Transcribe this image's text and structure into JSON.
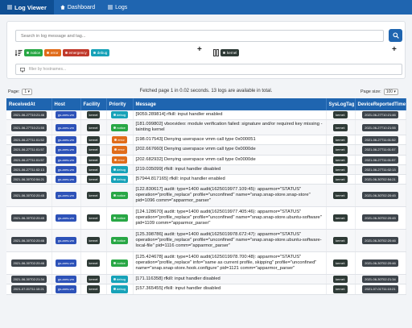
{
  "nav": {
    "brand": "Log Viewer",
    "dashboard": "Dashboard",
    "logs": "Logs"
  },
  "search": {
    "placeholder": "Search in log message and tag..."
  },
  "severity_tags": [
    {
      "label": "notice",
      "color": "#28a745"
    },
    {
      "label": "error",
      "color": "#e06c1a"
    },
    {
      "label": "emergency",
      "color": "#c0392b"
    },
    {
      "label": "debug",
      "color": "#17a2b8"
    }
  ],
  "syslog_tags": [
    {
      "label": "kernel",
      "color": "#2e3a36"
    }
  ],
  "host_filter": {
    "placeholder": "filter by hostnames..."
  },
  "pagination": {
    "page_label": "Page:",
    "page_value": "1",
    "status": "Fetched page 1 in 0.02 seconds. 13 logs are available in total.",
    "size_label": "Page size:",
    "size_value": "100"
  },
  "table": {
    "headers": [
      "ReceivedAt",
      "Host",
      "Facility",
      "Priority",
      "Message",
      "SysLogTag",
      "DeviceReportedTime"
    ],
    "rows": [
      {
        "received": "2021-06-27T10:21:46",
        "host": "gs-ares-vm",
        "facility": "kernel",
        "priority": "debug",
        "pcolor": "#17a2b8",
        "message": "[9059.289814] rfkill: input handler enabled",
        "tag": "kernel:",
        "reported": "2021-06-27T10:21:46"
      },
      {
        "received": "2021-06-27T10:21:55",
        "host": "gs-ares-vm",
        "facility": "kernel",
        "priority": "notice",
        "pcolor": "#28a745",
        "message": "[181.099802] vboxvideo: module verification failed: signature and/or required key missing - tainting kernel",
        "tag": "kernel:",
        "reported": "2021-06-27T10:21:55"
      },
      {
        "received": "2021-06-27T11:01:52",
        "host": "gs-ares-vm",
        "facility": "kernel",
        "priority": "error",
        "pcolor": "#e06c1a",
        "message": "[198.017543] Denying userspace vmm call type 0x000051",
        "tag": "kernel:",
        "reported": "2021-06-27T11:01:52"
      },
      {
        "received": "2021-06-27T11:01:57",
        "host": "gs-ares-vm",
        "facility": "kernel",
        "priority": "error",
        "pcolor": "#e06c1a",
        "message": "[202.667660] Denying userspace vmm call type 0x0000de",
        "tag": "kernel:",
        "reported": "2021-06-27T11:01:57"
      },
      {
        "received": "2021-06-27T11:01:57",
        "host": "gs-ares-vm",
        "facility": "kernel",
        "priority": "error",
        "pcolor": "#e06c1a",
        "message": "[202.682932] Denying userspace vmm call type 0x0000de",
        "tag": "kernel:",
        "reported": "2021-06-27T11:01:57"
      },
      {
        "received": "2021-06-27T11:02:13",
        "host": "gs-ares-vm",
        "facility": "kernel",
        "priority": "debug",
        "pcolor": "#17a2b8",
        "message": "[219.035099] rfkill: input handler disabled",
        "tag": "kernel:",
        "reported": "2021-06-27T11:02:13"
      },
      {
        "received": "2021-06-30T02:54:21",
        "host": "gs-ares-vm",
        "facility": "kernel",
        "priority": "debug",
        "pcolor": "#17a2b8",
        "message": "[57944.817165] rfkill: input handler enabled",
        "tag": "kernel:",
        "reported": "2021-06-30T02:54:21"
      },
      {
        "received": "2021-06-30T02:20:45",
        "host": "gs-ares-vm",
        "facility": "kernel",
        "priority": "notice",
        "pcolor": "#28a745",
        "message": "[122.830617] audit: type=1400 audit(1625019977.109:45): apparmor=\"STATUS\" operation=\"profile_replace\" profile=\"unconfined\" name=\"snap.snap-store.snap-store\" pid=1096 comm=\"apparmor_parser\"",
        "tag": "kernel:",
        "reported": "2021-06-30T02:20:45"
      },
      {
        "received": "2021-06-30T02:20:45",
        "host": "gs-ares-vm",
        "facility": "kernel",
        "priority": "notice",
        "pcolor": "#28a745",
        "message": "[124.128670] audit: type=1400 audit(1625019977.405:46): apparmor=\"STATUS\" operation=\"profile_replace\" profile=\"unconfined\" name=\"snap.snap-store.ubuntu-software\" pid=1109 comm=\"apparmor_parser\"",
        "tag": "kernel:",
        "reported": "2021-06-30T02:20:45"
      },
      {
        "received": "2021-06-30T02:20:46",
        "host": "gs-ares-vm",
        "facility": "kernel",
        "priority": "notice",
        "pcolor": "#28a745",
        "message": "[125.398786] audit: type=1400 audit(1625019978.672:47): apparmor=\"STATUS\" operation=\"profile_replace\" profile=\"unconfined\" name=\"snap.snap-store.ubuntu-software-local-file\" pid=1116 comm=\"apparmor_parser\"",
        "tag": "kernel:",
        "reported": "2021-06-30T02:20:46"
      },
      {
        "received": "2021-06-30T02:20:46",
        "host": "gs-ares-vm",
        "facility": "kernel",
        "priority": "notice",
        "pcolor": "#28a745",
        "message": "[125.424678] audit: type=1400 audit(1625019978.700:48): apparmor=\"STATUS\" operation=\"profile_replace\" info=\"same as current profile, skipping\" profile=\"unconfined\" name=\"snap.snap-store.hook.configure\" pid=1121 comm=\"apparmor_parser\"",
        "tag": "kernel:",
        "reported": "2021-06-30T02:20:46"
      },
      {
        "received": "2021-06-30T02:21:34",
        "host": "gs-ares-vm",
        "facility": "kernel",
        "priority": "debug",
        "pcolor": "#17a2b8",
        "message": "[171.116358] rfkill: input handler disabled",
        "tag": "kernel:",
        "reported": "2021-06-30T02:21:34"
      },
      {
        "received": "2021-07-01T11:10:21",
        "host": "gs-ares-vm",
        "facility": "kernel",
        "priority": "debug",
        "pcolor": "#17a2b8",
        "message": "[157.365455] rfkill: input handler disabled",
        "tag": "kernel:",
        "reported": "2021-07-01T11:10:21"
      }
    ]
  }
}
